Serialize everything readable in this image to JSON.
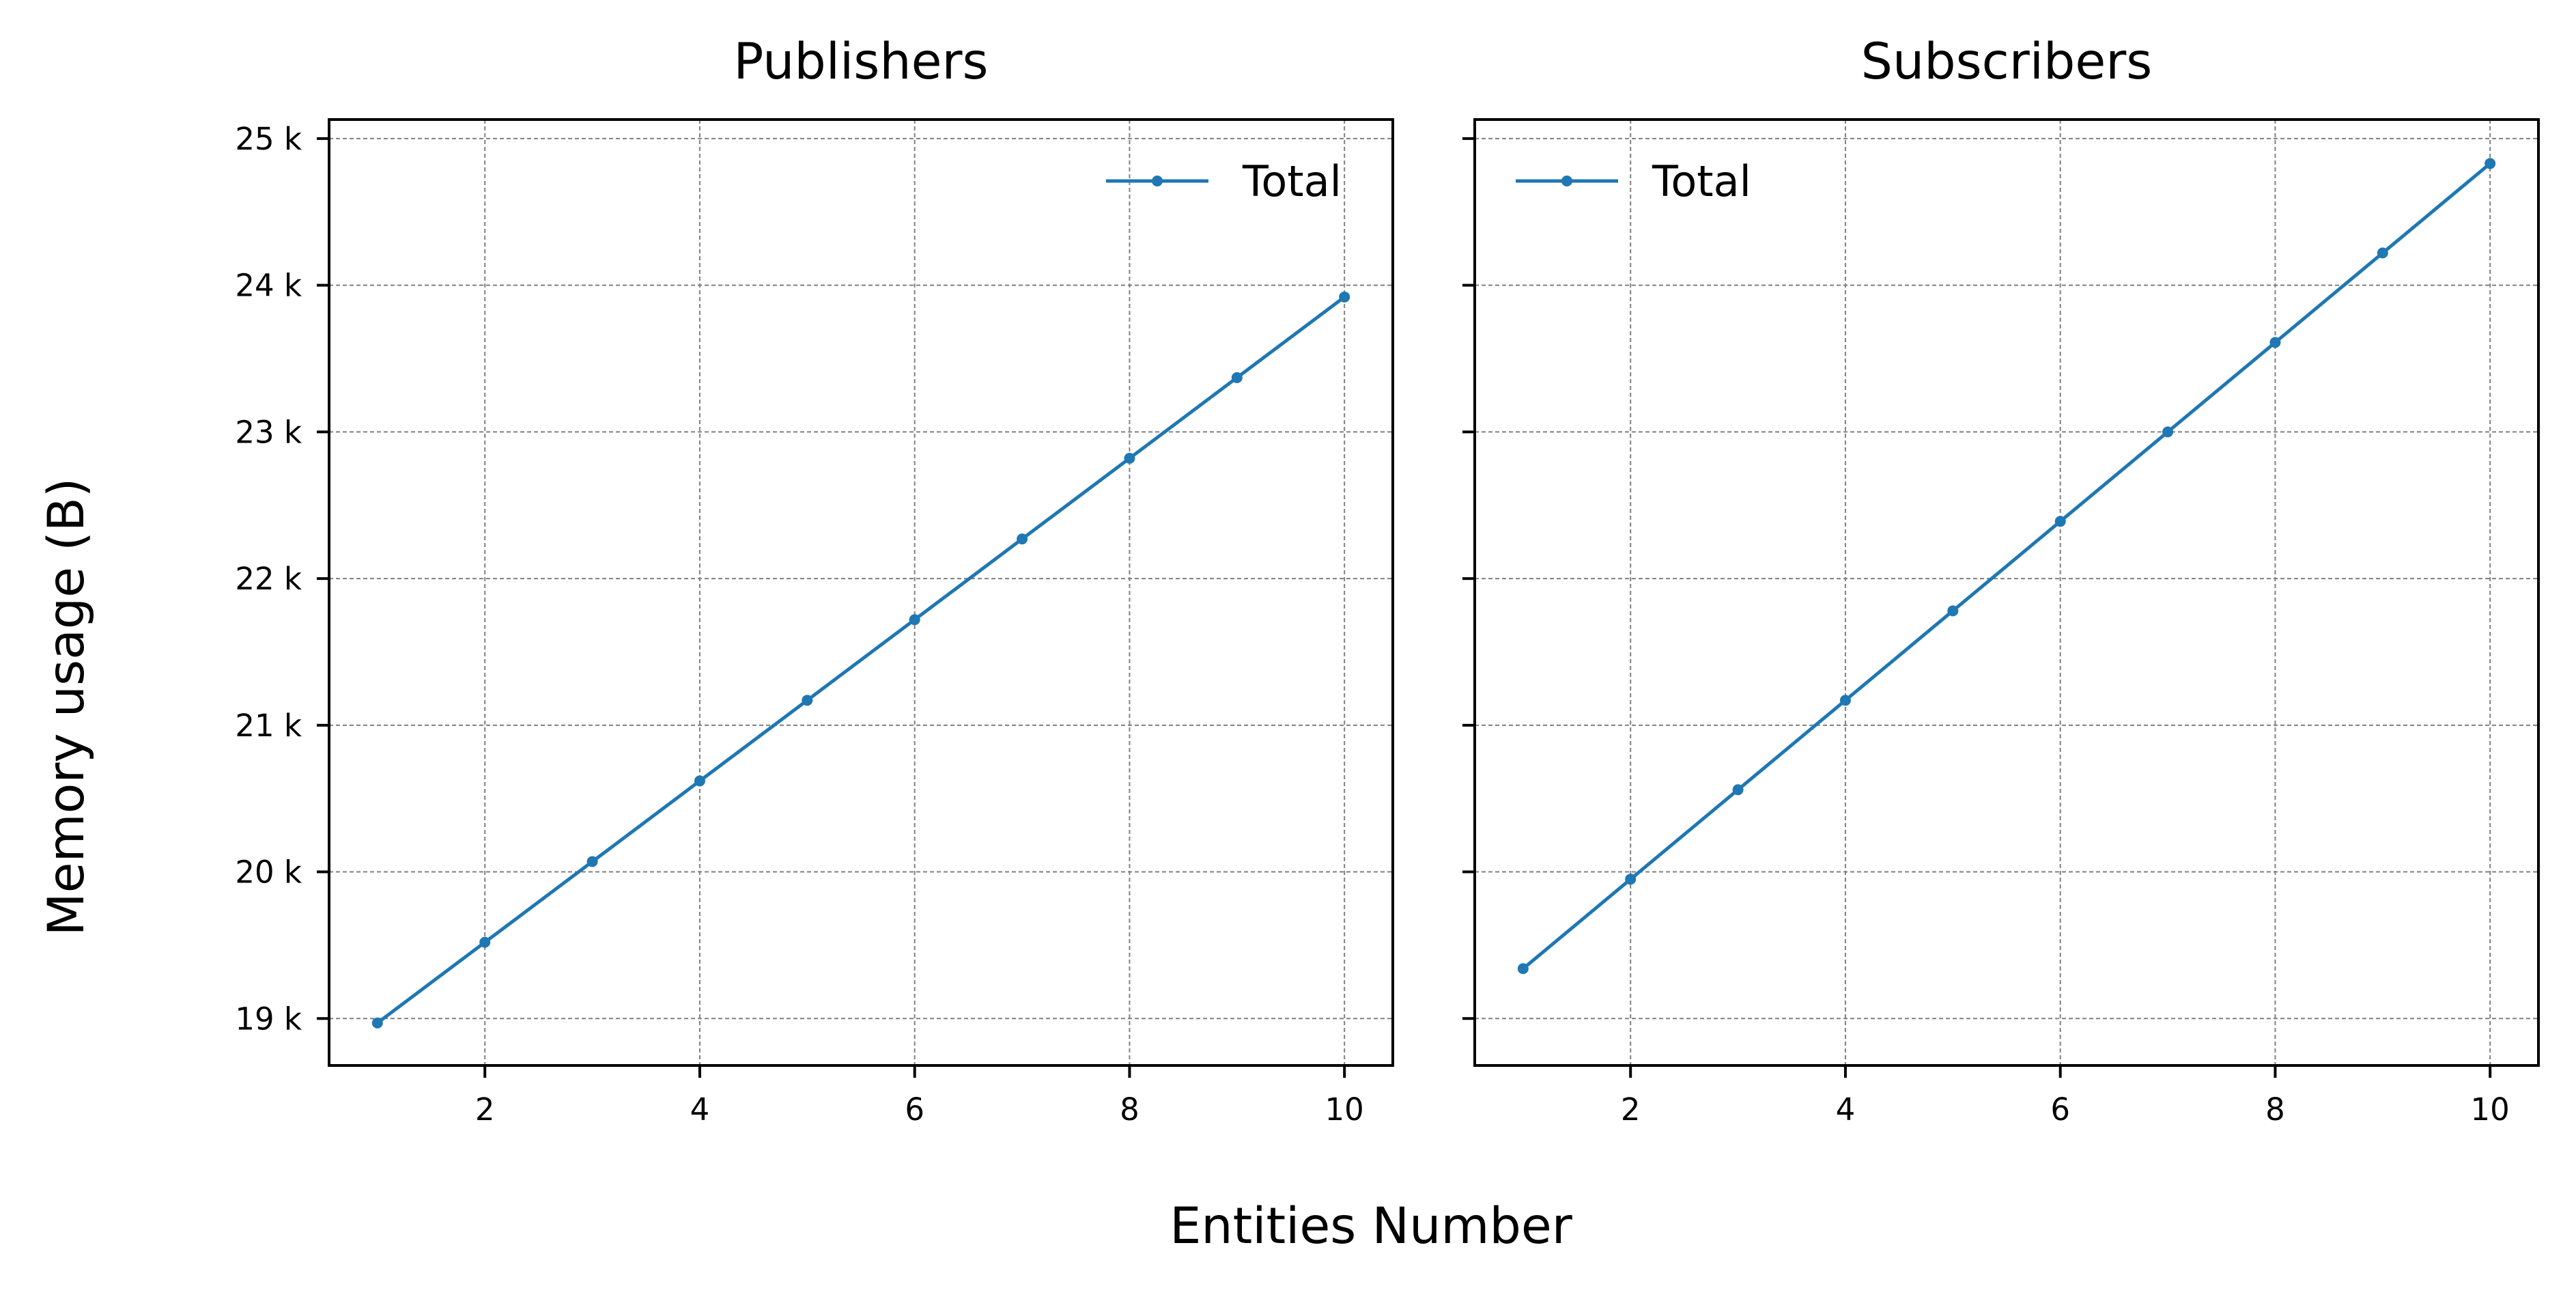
{
  "figure": {
    "xlabel": "Entities Number",
    "ylabel": "Memory usage (B)"
  },
  "colors": {
    "series": "#1f77b4",
    "grid": "#808080",
    "axes": "#000000"
  },
  "chart_data": [
    {
      "type": "line",
      "title": "Publishers",
      "xlabel": "Entities Number",
      "ylabel": "Memory usage (B)",
      "xlim": [
        0.55,
        10.45
      ],
      "ylim": [
        18680,
        25130
      ],
      "xticks": [
        2,
        4,
        6,
        8,
        10
      ],
      "xtick_labels": [
        "2",
        "4",
        "6",
        "8",
        "10"
      ],
      "yticks": [
        19000,
        20000,
        21000,
        22000,
        23000,
        24000,
        25000
      ],
      "ytick_labels": [
        "19 k",
        "20 k",
        "21 k",
        "22 k",
        "23 k",
        "24 k",
        "25 k"
      ],
      "grid": true,
      "legend_position": "top-right",
      "series": [
        {
          "name": "Total",
          "marker": "circle",
          "x": [
            1,
            2,
            3,
            4,
            5,
            6,
            7,
            8,
            9,
            10
          ],
          "y": [
            18970,
            19520,
            20070,
            20620,
            21170,
            21720,
            22270,
            22820,
            23370,
            23920
          ]
        }
      ]
    },
    {
      "type": "line",
      "title": "Subscribers",
      "xlabel": "Entities Number",
      "ylabel": "Memory usage (B)",
      "xlim": [
        0.55,
        10.45
      ],
      "ylim": [
        18680,
        25130
      ],
      "xticks": [
        2,
        4,
        6,
        8,
        10
      ],
      "xtick_labels": [
        "2",
        "4",
        "6",
        "8",
        "10"
      ],
      "yticks": [
        19000,
        20000,
        21000,
        22000,
        23000,
        24000,
        25000
      ],
      "ytick_labels": [],
      "grid": true,
      "legend_position": "top-left",
      "series": [
        {
          "name": "Total",
          "marker": "circle",
          "x": [
            1,
            2,
            3,
            4,
            5,
            6,
            7,
            8,
            9,
            10
          ],
          "y": [
            19340,
            19950,
            20560,
            21170,
            21780,
            22390,
            23000,
            23610,
            24220,
            24830
          ]
        }
      ]
    }
  ]
}
